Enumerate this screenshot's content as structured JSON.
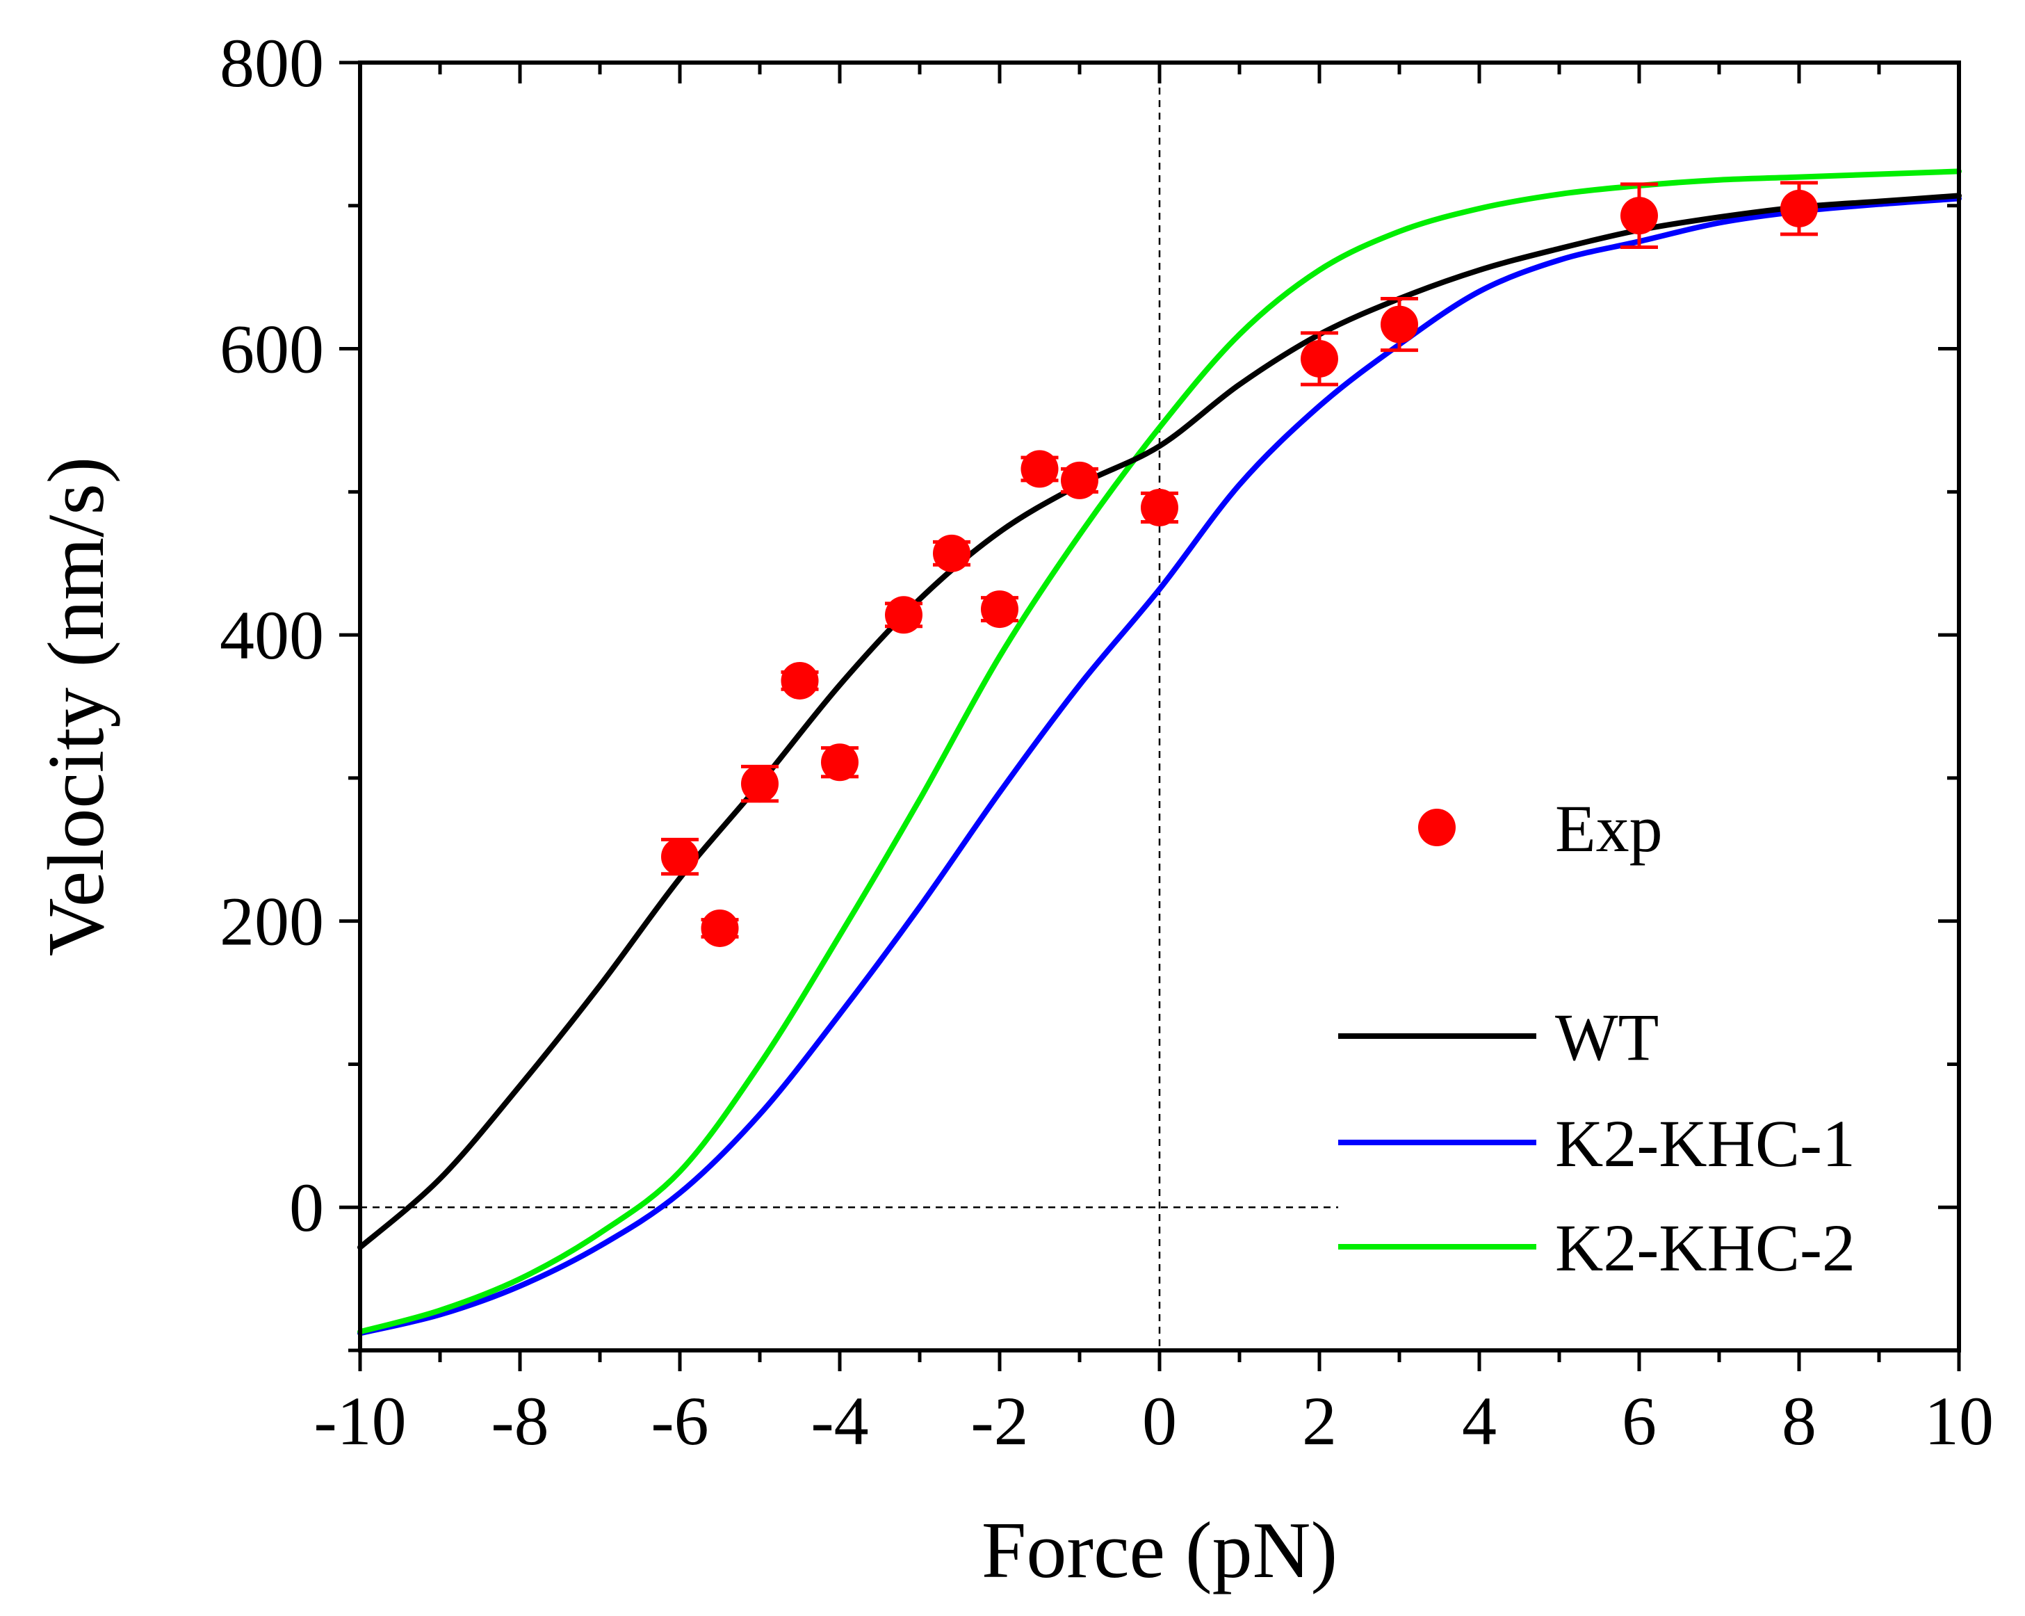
{
  "chart_data": {
    "type": "line",
    "xlabel": "Force (pN)",
    "ylabel": "Velocity (nm/s)",
    "xlim": [
      -10,
      10
    ],
    "ylim": [
      -100,
      800
    ],
    "xticks": [
      -10,
      -8,
      -6,
      -4,
      -2,
      0,
      2,
      4,
      6,
      8,
      10
    ],
    "yticks": [
      0,
      200,
      400,
      600,
      800
    ],
    "grid": false,
    "reference_lines": {
      "vertical_x": 0,
      "horizontal_y": 0,
      "style": "dashed"
    },
    "legend_position": "right",
    "colors": {
      "exp": "#ff0000",
      "WT": "#000000",
      "K2-KHC-1": "#0000ff",
      "K2-KHC-2": "#00ee00"
    },
    "scatter": {
      "name": "Exp",
      "points": [
        {
          "x": -6.0,
          "y": 245,
          "err": 12
        },
        {
          "x": -5.5,
          "y": 195,
          "err": 6
        },
        {
          "x": -5.0,
          "y": 296,
          "err": 12
        },
        {
          "x": -4.5,
          "y": 368,
          "err": 6
        },
        {
          "x": -4.0,
          "y": 311,
          "err": 10
        },
        {
          "x": -3.2,
          "y": 414,
          "err": 8
        },
        {
          "x": -2.6,
          "y": 457,
          "err": 8
        },
        {
          "x": -2.0,
          "y": 418,
          "err": 8
        },
        {
          "x": -1.5,
          "y": 516,
          "err": 8
        },
        {
          "x": -1.0,
          "y": 508,
          "err": 8
        },
        {
          "x": 0.0,
          "y": 489,
          "err": 10
        },
        {
          "x": 2.0,
          "y": 593,
          "err": 18
        },
        {
          "x": 3.0,
          "y": 617,
          "err": 18
        },
        {
          "x": 6.0,
          "y": 693,
          "err": 22
        },
        {
          "x": 8.0,
          "y": 698,
          "err": 18
        }
      ]
    },
    "series": [
      {
        "name": "WT",
        "x": [
          -10,
          -9,
          -8,
          -7,
          -6,
          -5,
          -4,
          -3,
          -2,
          -1,
          0,
          1,
          2,
          3,
          4,
          5,
          6,
          7,
          8,
          9,
          10
        ],
        "y": [
          -28,
          20,
          85,
          155,
          230,
          296,
          365,
          425,
          472,
          505,
          532,
          575,
          610,
          635,
          655,
          670,
          683,
          692,
          699,
          703,
          707
        ]
      },
      {
        "name": "K2-KHC-1",
        "x": [
          -10,
          -9,
          -8,
          -7,
          -6,
          -5,
          -4,
          -3,
          -2,
          -1,
          0,
          1,
          2,
          3,
          4,
          5,
          6,
          7,
          8,
          9,
          10
        ],
        "y": [
          -88,
          -75,
          -55,
          -27,
          10,
          65,
          135,
          210,
          290,
          365,
          432,
          505,
          560,
          603,
          640,
          662,
          675,
          688,
          696,
          701,
          705
        ]
      },
      {
        "name": "K2-KHC-2",
        "x": [
          -10,
          -9,
          -8,
          -7,
          -6,
          -5,
          -4,
          -3,
          -2,
          -1,
          0,
          1,
          2,
          3,
          4,
          5,
          6,
          7,
          8,
          9,
          10
        ],
        "y": [
          -87,
          -72,
          -50,
          -18,
          25,
          100,
          190,
          285,
          385,
          470,
          545,
          610,
          655,
          682,
          698,
          708,
          714,
          718,
          720,
          722,
          724
        ]
      }
    ]
  }
}
